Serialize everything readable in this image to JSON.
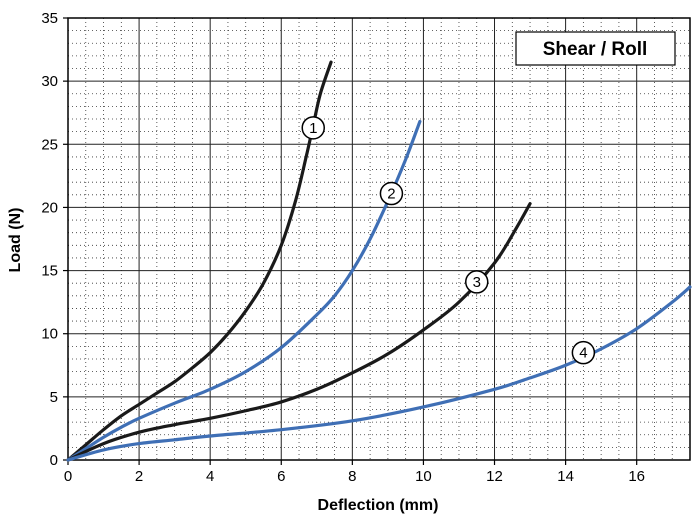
{
  "chart_data": {
    "type": "line",
    "title": "Shear / Roll",
    "xlabel": "Deflection (mm)",
    "ylabel": "Load (N)",
    "xlim": [
      0,
      17.5
    ],
    "ylim": [
      0,
      35
    ],
    "x_ticks": [
      "0",
      "2",
      "4",
      "6",
      "8",
      "10",
      "12",
      "14",
      "16"
    ],
    "y_ticks": [
      "0",
      "5",
      "10",
      "15",
      "20",
      "25",
      "30",
      "35"
    ],
    "grid": true,
    "series": [
      {
        "name": "1",
        "color": "#1a1a1a",
        "label_at": [
          6.9,
          26.3
        ],
        "points": [
          [
            0,
            0
          ],
          [
            0.5,
            1.2
          ],
          [
            1,
            2.4
          ],
          [
            1.5,
            3.5
          ],
          [
            2,
            4.4
          ],
          [
            2.5,
            5.3
          ],
          [
            3,
            6.2
          ],
          [
            3.5,
            7.3
          ],
          [
            4,
            8.5
          ],
          [
            4.5,
            10
          ],
          [
            5,
            11.8
          ],
          [
            5.5,
            14
          ],
          [
            6,
            17
          ],
          [
            6.4,
            20.5
          ],
          [
            6.7,
            24
          ],
          [
            6.9,
            26.5
          ],
          [
            7.1,
            29
          ],
          [
            7.4,
            31.5
          ]
        ]
      },
      {
        "name": "2",
        "color": "#3f6fb5",
        "label_at": [
          9.1,
          21.1
        ],
        "points": [
          [
            0,
            0
          ],
          [
            0.5,
            0.9
          ],
          [
            1,
            1.8
          ],
          [
            1.5,
            2.6
          ],
          [
            2,
            3.3
          ],
          [
            3,
            4.5
          ],
          [
            4,
            5.6
          ],
          [
            5,
            7
          ],
          [
            6,
            8.9
          ],
          [
            7,
            11.5
          ],
          [
            7.5,
            13
          ],
          [
            8,
            15
          ],
          [
            8.5,
            17.5
          ],
          [
            9,
            20.5
          ],
          [
            9.5,
            23.8
          ],
          [
            9.9,
            26.8
          ]
        ]
      },
      {
        "name": "3",
        "color": "#1a1a1a",
        "label_at": [
          11.5,
          14.1
        ],
        "points": [
          [
            0,
            0
          ],
          [
            1,
            1.3
          ],
          [
            2,
            2.2
          ],
          [
            3,
            2.8
          ],
          [
            4,
            3.3
          ],
          [
            5,
            3.9
          ],
          [
            6,
            4.6
          ],
          [
            7,
            5.6
          ],
          [
            8,
            6.9
          ],
          [
            9,
            8.4
          ],
          [
            10,
            10.3
          ],
          [
            11,
            12.5
          ],
          [
            12,
            15.6
          ],
          [
            12.6,
            18.3
          ],
          [
            13,
            20.3
          ]
        ]
      },
      {
        "name": "4",
        "color": "#3f6fb5",
        "label_at": [
          14.5,
          8.5
        ],
        "points": [
          [
            0,
            0
          ],
          [
            1,
            0.8
          ],
          [
            2,
            1.3
          ],
          [
            3,
            1.6
          ],
          [
            4,
            1.9
          ],
          [
            6,
            2.4
          ],
          [
            8,
            3.1
          ],
          [
            10,
            4.2
          ],
          [
            12,
            5.6
          ],
          [
            13,
            6.5
          ],
          [
            14,
            7.5
          ],
          [
            15,
            8.8
          ],
          [
            16,
            10.4
          ],
          [
            17,
            12.5
          ],
          [
            17.5,
            13.7
          ]
        ]
      }
    ]
  }
}
